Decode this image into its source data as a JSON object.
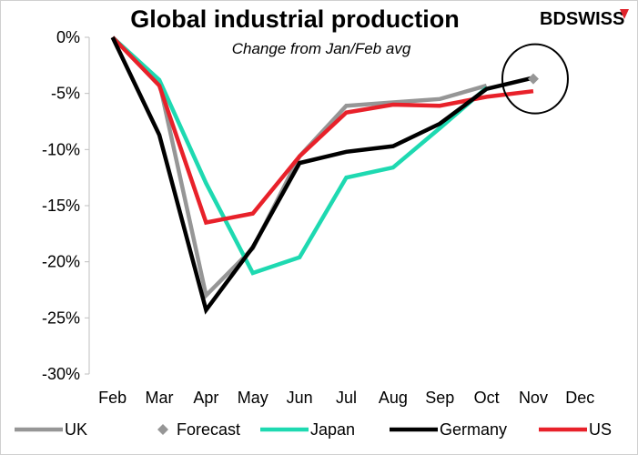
{
  "brand": {
    "text": "BDSWISS",
    "color": "#e0232b"
  },
  "chart_data": {
    "type": "line",
    "title": "Global industrial production",
    "subtitle": "Change from Jan/Feb avg",
    "categories": [
      "Feb",
      "Mar",
      "Apr",
      "May",
      "Jun",
      "Jul",
      "Aug",
      "Sep",
      "Oct",
      "Nov",
      "Dec"
    ],
    "ylim": [
      -30,
      0
    ],
    "yticks": [
      0,
      -5,
      -10,
      -15,
      -20,
      -25,
      -30
    ],
    "ytick_labels": [
      "0%",
      "-5%",
      "-10%",
      "-15%",
      "-20%",
      "-25%",
      "-30%"
    ],
    "grid": false,
    "legend_position": "bottom",
    "series": [
      {
        "name": "UK",
        "color": "#969696",
        "marker": "none",
        "values": [
          0,
          -4.0,
          -23.0,
          -18.8,
          -10.6,
          -6.1,
          -5.8,
          -5.5,
          -4.3,
          null,
          null
        ]
      },
      {
        "name": "Forecast",
        "color": "#969696",
        "marker": "diamond",
        "values": [
          null,
          null,
          null,
          null,
          null,
          null,
          null,
          null,
          null,
          -3.7,
          null
        ]
      },
      {
        "name": "Japan",
        "color": "#1ed9b1",
        "marker": "none",
        "values": [
          0,
          -3.8,
          -13.0,
          -21.0,
          -19.6,
          -12.5,
          -11.6,
          -8.1,
          -4.5,
          null,
          null
        ]
      },
      {
        "name": "Germany",
        "color": "#000000",
        "marker": "none",
        "values": [
          0,
          -8.7,
          -24.3,
          -18.7,
          -11.2,
          -10.2,
          -9.7,
          -7.7,
          -4.6,
          -3.6,
          null
        ]
      },
      {
        "name": "US",
        "color": "#e8212a",
        "marker": "none",
        "values": [
          0,
          -4.3,
          -16.5,
          -15.7,
          -10.6,
          -6.7,
          -6.0,
          -6.1,
          -5.3,
          -4.8,
          null
        ]
      }
    ],
    "annotations": [
      {
        "type": "circle",
        "category": "Nov",
        "value": -3.7
      }
    ]
  }
}
